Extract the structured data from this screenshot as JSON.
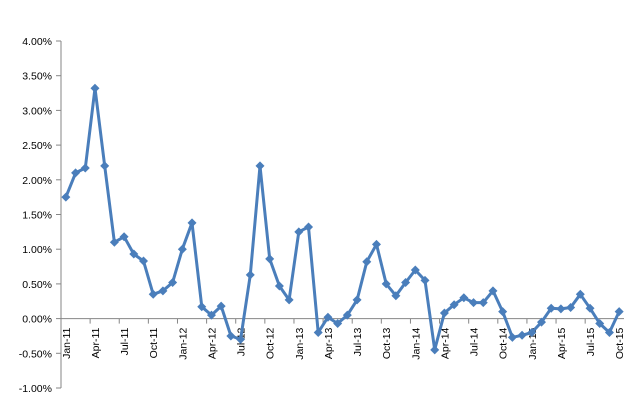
{
  "chart_data": {
    "type": "line",
    "title": "",
    "xlabel": "",
    "ylabel": "",
    "ylim": [
      -1.0,
      4.0
    ],
    "y_ticks": [
      "-1.00%",
      "-0.50%",
      "0.00%",
      "0.50%",
      "1.00%",
      "1.50%",
      "2.00%",
      "2.50%",
      "3.00%",
      "3.50%",
      "4.00%"
    ],
    "y_tick_values": [
      -1.0,
      -0.5,
      0,
      0.5,
      1.0,
      1.5,
      2.0,
      2.5,
      3.0,
      3.5,
      4.0
    ],
    "grid": false,
    "legend": "none",
    "marker": "diamond",
    "color": "#4a7ebb",
    "categories": [
      "Jan-11",
      "Feb-11",
      "Mar-11",
      "Apr-11",
      "May-11",
      "Jun-11",
      "Jul-11",
      "Aug-11",
      "Sep-11",
      "Oct-11",
      "Nov-11",
      "Dec-11",
      "Jan-12",
      "Feb-12",
      "Mar-12",
      "Apr-12",
      "May-12",
      "Jun-12",
      "Jul-12",
      "Aug-12",
      "Sep-12",
      "Oct-12",
      "Nov-12",
      "Dec-12",
      "Jan-13",
      "Feb-13",
      "Mar-13",
      "Apr-13",
      "May-13",
      "Jun-13",
      "Jul-13",
      "Aug-13",
      "Sep-13",
      "Oct-13",
      "Nov-13",
      "Dec-13",
      "Jan-14",
      "Feb-14",
      "Mar-14",
      "Apr-14",
      "May-14",
      "Jun-14",
      "Jul-14",
      "Aug-14",
      "Sep-14",
      "Oct-14",
      "Nov-14",
      "Dec-14",
      "Jan-15",
      "Feb-15",
      "Mar-15",
      "Apr-15",
      "May-15",
      "Jun-15",
      "Jul-15",
      "Aug-15",
      "Sep-15",
      "Oct-15"
    ],
    "x_tick_labels": [
      "Jan-11",
      "Apr-11",
      "Jul-11",
      "Oct-11",
      "Jan-12",
      "Apr-12",
      "Jul-12",
      "Oct-12",
      "Jan-13",
      "Apr-13",
      "Jul-13",
      "Oct-13",
      "Jan-14",
      "Apr-14",
      "Jul-14",
      "Oct-14",
      "Jan-15",
      "Apr-15",
      "Jul-15",
      "Oct-15"
    ],
    "series": [
      {
        "values": [
          1.75,
          2.1,
          2.17,
          3.32,
          2.2,
          1.1,
          1.18,
          0.93,
          0.83,
          0.35,
          0.4,
          0.52,
          1.0,
          1.38,
          0.17,
          0.05,
          0.18,
          -0.25,
          -0.3,
          0.63,
          2.2,
          0.86,
          0.47,
          0.27,
          1.25,
          1.32,
          -0.2,
          0.02,
          -0.07,
          0.05,
          0.27,
          0.82,
          1.07,
          0.5,
          0.33,
          0.52,
          0.7,
          0.55,
          -0.45,
          0.08,
          0.2,
          0.3,
          0.23,
          0.23,
          0.4,
          0.1,
          -0.27,
          -0.24,
          -0.2,
          -0.05,
          0.15,
          0.14,
          0.16,
          0.35,
          0.15,
          -0.07,
          -0.2,
          0.1
        ]
      }
    ]
  }
}
